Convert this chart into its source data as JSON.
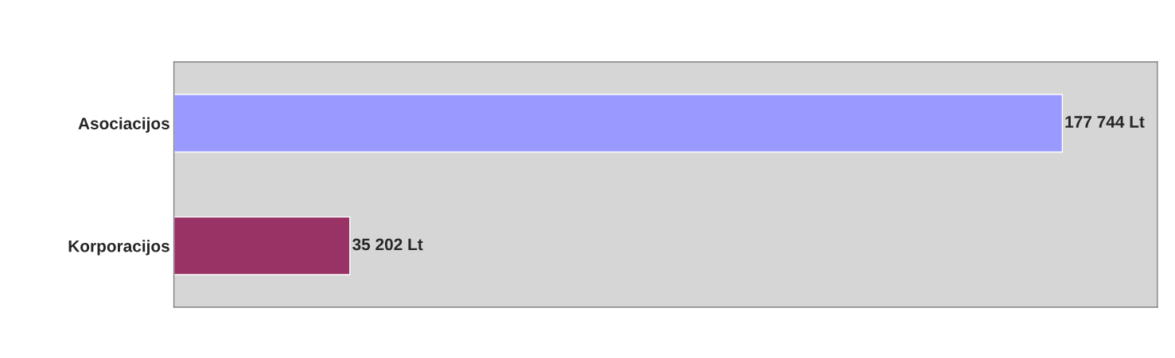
{
  "chart_data": {
    "type": "bar",
    "orientation": "horizontal",
    "categories": [
      "Asociacijos",
      "Korporacijos"
    ],
    "values": [
      177744,
      35202
    ],
    "colors": [
      "#9999ff",
      "#993366"
    ],
    "value_labels": [
      "177 744 Lt",
      "35 202 Lt"
    ],
    "grid": false,
    "legend": false,
    "tick_labels": "y"
  }
}
